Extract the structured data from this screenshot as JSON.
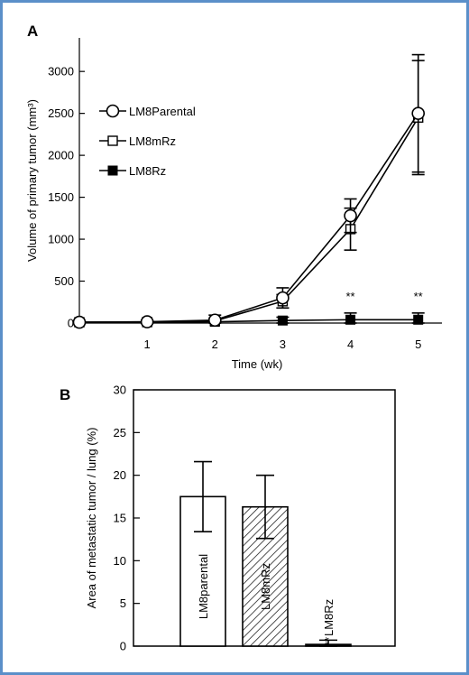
{
  "chart_data": [
    {
      "panel": "A",
      "type": "line",
      "xlabel": "Time (wk)",
      "ylabel": "Volume of primary tumor (mm³)",
      "x": [
        0,
        1,
        2,
        3,
        4,
        5
      ],
      "xticks": [
        1,
        2,
        3,
        4,
        5
      ],
      "xlim": [
        0,
        5.35
      ],
      "ylim": [
        0,
        3400
      ],
      "yticks": [
        0,
        500,
        1000,
        1500,
        2000,
        2500,
        3000
      ],
      "series": [
        {
          "name": "LM8Parental",
          "marker": "open-circle",
          "values": [
            10,
            15,
            35,
            300,
            1280,
            2500
          ],
          "errors": [
            10,
            15,
            25,
            120,
            200,
            700
          ]
        },
        {
          "name": "LM8mRz",
          "marker": "open-square",
          "values": [
            10,
            12,
            25,
            260,
            1120,
            2450
          ],
          "errors": [
            10,
            15,
            70,
            80,
            250,
            680
          ]
        },
        {
          "name": "LM8Rz",
          "marker": "filled-square",
          "values": [
            10,
            10,
            15,
            30,
            40,
            40
          ],
          "errors": [
            10,
            10,
            10,
            40,
            80,
            80
          ]
        }
      ],
      "annotations": [
        {
          "x": 4,
          "text": "**"
        },
        {
          "x": 5,
          "text": "**"
        }
      ],
      "legend_position": "left"
    },
    {
      "panel": "B",
      "type": "bar",
      "ylabel": "Area of metastatic tumor / lung (%)",
      "ylim": [
        0,
        30
      ],
      "yticks": [
        0,
        5,
        10,
        15,
        20,
        25,
        30
      ],
      "categories": [
        "LM8parental",
        "LM8mRz",
        "LM8Rz"
      ],
      "values": [
        17.5,
        16.3,
        0.2
      ],
      "errors": [
        4.1,
        3.7,
        0.5
      ],
      "fills": [
        "white",
        "hatched",
        "black"
      ],
      "annotations": [
        {
          "category": "LM8Rz",
          "text": "**"
        }
      ]
    }
  ],
  "colors": {
    "frame": "#5b8fc9",
    "ink": "#000000",
    "background": "#ffffff"
  }
}
